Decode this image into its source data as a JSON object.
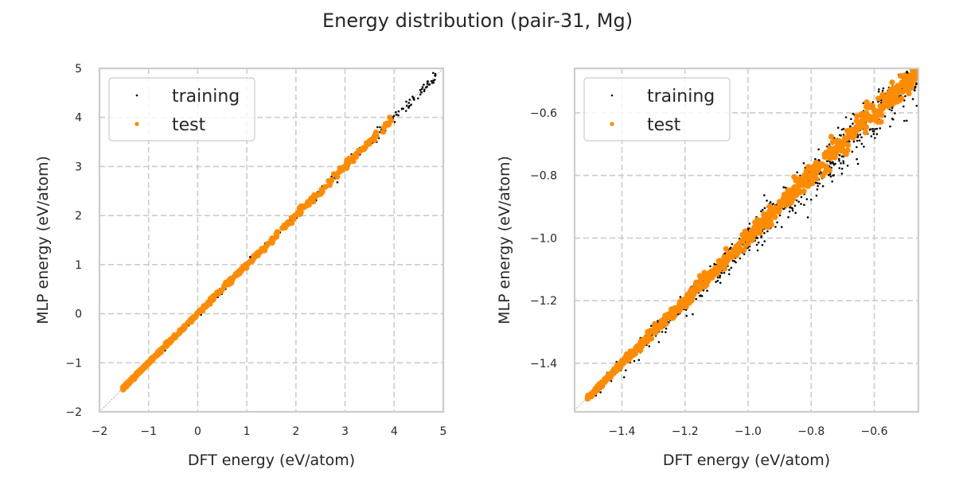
{
  "figure": {
    "title": "Energy distribution (pair-31, Mg)"
  },
  "colors": {
    "training": "#000000",
    "test": "#ff8c00",
    "grid": "#cccccc",
    "spine": "#cccccc",
    "diagonal": "#a0a0a0",
    "text": "#262626"
  },
  "chart_data": [
    {
      "type": "scatter",
      "title": "",
      "xlabel": "DFT energy (eV/atom)",
      "ylabel": "MLP energy (eV/atom)",
      "xlim": [
        -2,
        5
      ],
      "ylim": [
        -2,
        5
      ],
      "xticks": [
        -2,
        -1,
        0,
        1,
        2,
        3,
        4,
        5
      ],
      "xtick_labels": [
        "−2",
        "−1",
        "0",
        "1",
        "2",
        "3",
        "4",
        "5"
      ],
      "yticks": [
        -2,
        -1,
        0,
        1,
        2,
        3,
        4,
        5
      ],
      "ytick_labels": [
        "−2",
        "−1",
        "0",
        "1",
        "2",
        "3",
        "4",
        "5"
      ],
      "grid": true,
      "legend": {
        "placement": "upper-left",
        "entries": [
          "training",
          "test"
        ]
      },
      "reference_line": "y = x",
      "series": [
        {
          "name": "training",
          "marker_size": "small",
          "x_range": [
            -1.52,
            4.85
          ],
          "scatter_spread": 0.04,
          "count": 700,
          "density": "dense near -1.5 to 0, sparse above 2"
        },
        {
          "name": "test",
          "marker_size": "medium",
          "x_range": [
            -1.52,
            4.0
          ],
          "scatter_spread": 0.03,
          "count": 450,
          "density": "dense near -1.5 to 0.5, few points above 2"
        }
      ]
    },
    {
      "type": "scatter",
      "title": "",
      "xlabel": "DFT energy (eV/atom)",
      "ylabel": "MLP energy (eV/atom)",
      "xlim": [
        -1.55,
        -0.46
      ],
      "ylim": [
        -1.555,
        -0.458
      ],
      "xticks": [
        -1.4,
        -1.2,
        -1.0,
        -0.8,
        -0.6
      ],
      "xtick_labels": [
        "−1.4",
        "−1.2",
        "−1.0",
        "−0.8",
        "−0.6"
      ],
      "yticks": [
        -1.4,
        -1.2,
        -1.0,
        -0.8,
        -0.6
      ],
      "ytick_labels": [
        "−1.4",
        "−1.2",
        "−1.0",
        "−0.8",
        "−0.6"
      ],
      "grid": true,
      "legend": {
        "placement": "upper-left",
        "entries": [
          "training",
          "test"
        ]
      },
      "reference_line": "y = x",
      "series": [
        {
          "name": "training",
          "marker_size": "small",
          "x_range": [
            -1.51,
            -0.46
          ],
          "scatter_spread": 0.018,
          "count": 1100,
          "density": "spread grows toward -0.5"
        },
        {
          "name": "test",
          "marker_size": "medium",
          "x_range": [
            -1.51,
            -0.46
          ],
          "scatter_spread": 0.012,
          "count": 700,
          "density": "continuous band along diagonal"
        }
      ]
    }
  ]
}
